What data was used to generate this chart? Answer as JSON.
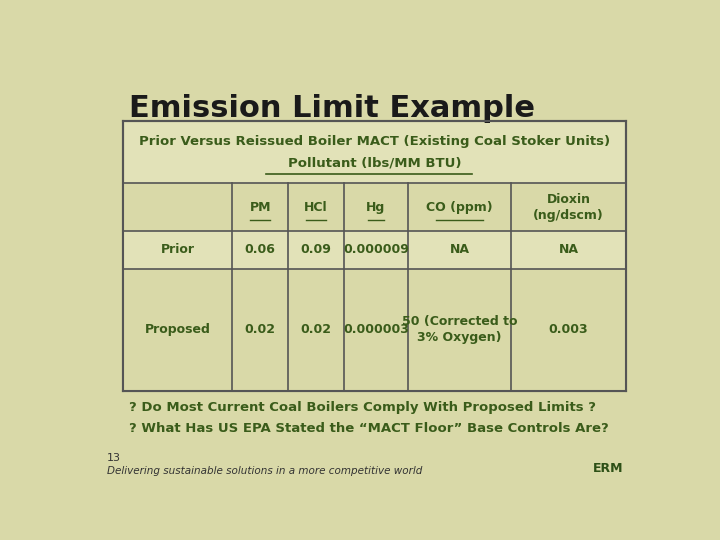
{
  "title": "Emission Limit Example",
  "bg_color": "#d9d9a8",
  "table_header1": "Prior Versus Reissued Boiler MACT (Existing Coal Stoker Units)",
  "table_header2": "Pollutant (lbs/MM BTU)",
  "col_headers": [
    "",
    "PM",
    "HCl",
    "Hg",
    "CO (ppm)",
    "Dioxin\n(ng/dscm)"
  ],
  "rows": [
    [
      "Prior",
      "0.06",
      "0.09",
      "0.000009",
      "NA",
      "NA"
    ],
    [
      "Proposed",
      "0.02",
      "0.02",
      "0.000003",
      "50 (Corrected to\n3% Oxygen)",
      "0.003"
    ]
  ],
  "footnote1": "? Do Most Current Coal Boilers Comply With Proposed Limits ?",
  "footnote2": "? What Has US EPA Stated the “MACT Floor” Base Controls Are?",
  "page_number": "13",
  "footer_text": "Delivering sustainable solutions in a more competitive world",
  "text_color": "#3a5c1a",
  "table_border": "#555555",
  "title_color": "#1a1a1a"
}
